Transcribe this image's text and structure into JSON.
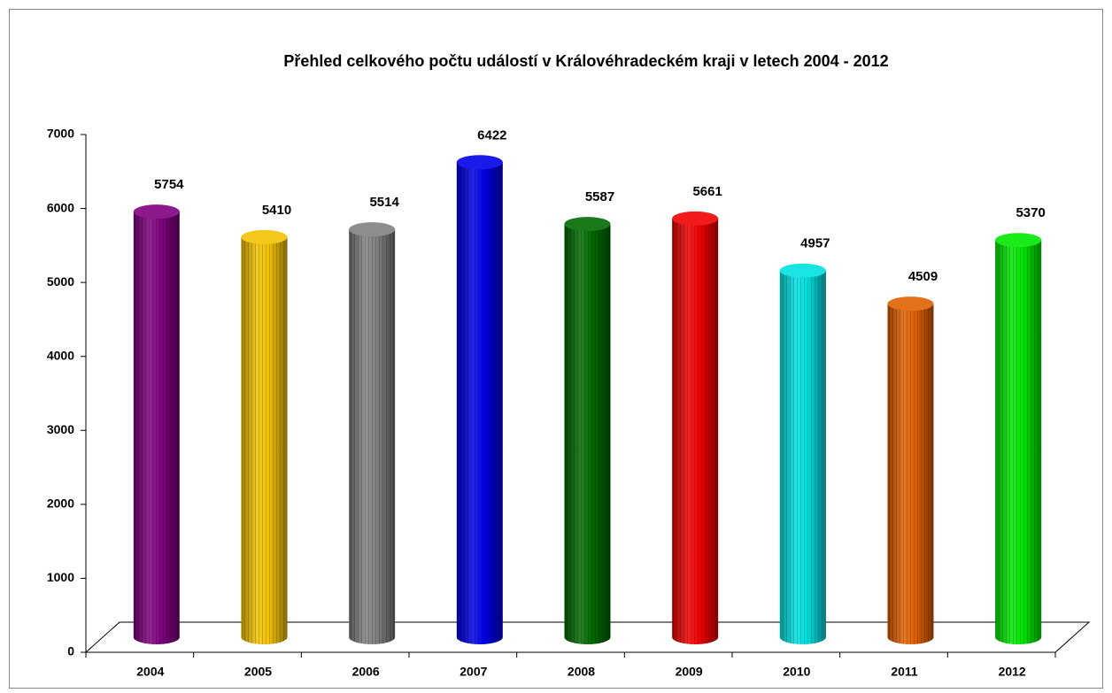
{
  "chart_data": {
    "type": "bar3d",
    "title": "Přehled celkového počtu událostí v Královéhradeckém kraji v letech 2004 - 2012",
    "categories": [
      "2004",
      "2005",
      "2006",
      "2007",
      "2008",
      "2009",
      "2010",
      "2011",
      "2012"
    ],
    "values": [
      5754,
      5410,
      5514,
      6422,
      5587,
      5661,
      4957,
      4509,
      5370
    ],
    "colors": [
      "#800080",
      "#f2c200",
      "#808080",
      "#0000e6",
      "#006a00",
      "#f00000",
      "#00e0e0",
      "#e06000",
      "#00e600"
    ],
    "ylim": [
      0,
      7000
    ],
    "yticks": [
      0,
      1000,
      2000,
      3000,
      4000,
      5000,
      6000,
      7000
    ],
    "grid": false
  }
}
